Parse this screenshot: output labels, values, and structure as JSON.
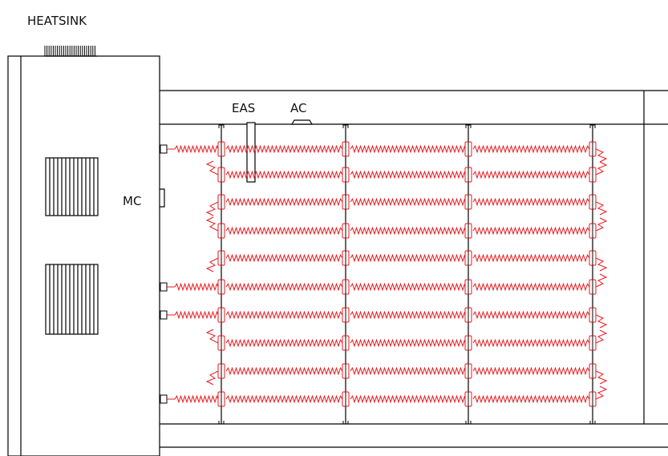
{
  "labels": {
    "heatsink": "HEATSINK",
    "eas": "EAS",
    "ac": "AC",
    "mc": "MC"
  },
  "colors": {
    "frame": "#000000",
    "heating_element": "#e8191e",
    "background": "#ffffff"
  },
  "diagram": {
    "heating_coil_rows": 10,
    "support_rails": 4,
    "coil_spans_per_row": 4,
    "control_box_vents": 2,
    "rows": [
      {
        "left_terminal": true,
        "left_return": false,
        "right_return": true,
        "segments": [
          1,
          1,
          1,
          1
        ]
      },
      {
        "left_terminal": false,
        "left_return": true,
        "right_return": true,
        "segments": [
          0,
          1,
          1,
          1
        ]
      },
      {
        "left_terminal": false,
        "left_return": true,
        "right_return": true,
        "segments": [
          0,
          1,
          1,
          1
        ]
      },
      {
        "left_terminal": false,
        "left_return": true,
        "right_return": true,
        "segments": [
          0,
          1,
          1,
          1
        ]
      },
      {
        "left_terminal": false,
        "left_return": true,
        "right_return": true,
        "segments": [
          0,
          1,
          1,
          1
        ]
      },
      {
        "left_terminal": true,
        "left_return": false,
        "right_return": true,
        "segments": [
          1,
          1,
          1,
          1
        ]
      },
      {
        "left_terminal": true,
        "left_return": false,
        "right_return": true,
        "segments": [
          1,
          1,
          1,
          1
        ]
      },
      {
        "left_terminal": false,
        "left_return": true,
        "right_return": true,
        "segments": [
          0,
          1,
          1,
          1
        ]
      },
      {
        "left_terminal": false,
        "left_return": true,
        "right_return": true,
        "segments": [
          0,
          1,
          1,
          1
        ]
      },
      {
        "left_terminal": true,
        "left_return": false,
        "right_return": true,
        "segments": [
          1,
          1,
          1,
          1
        ]
      }
    ]
  }
}
